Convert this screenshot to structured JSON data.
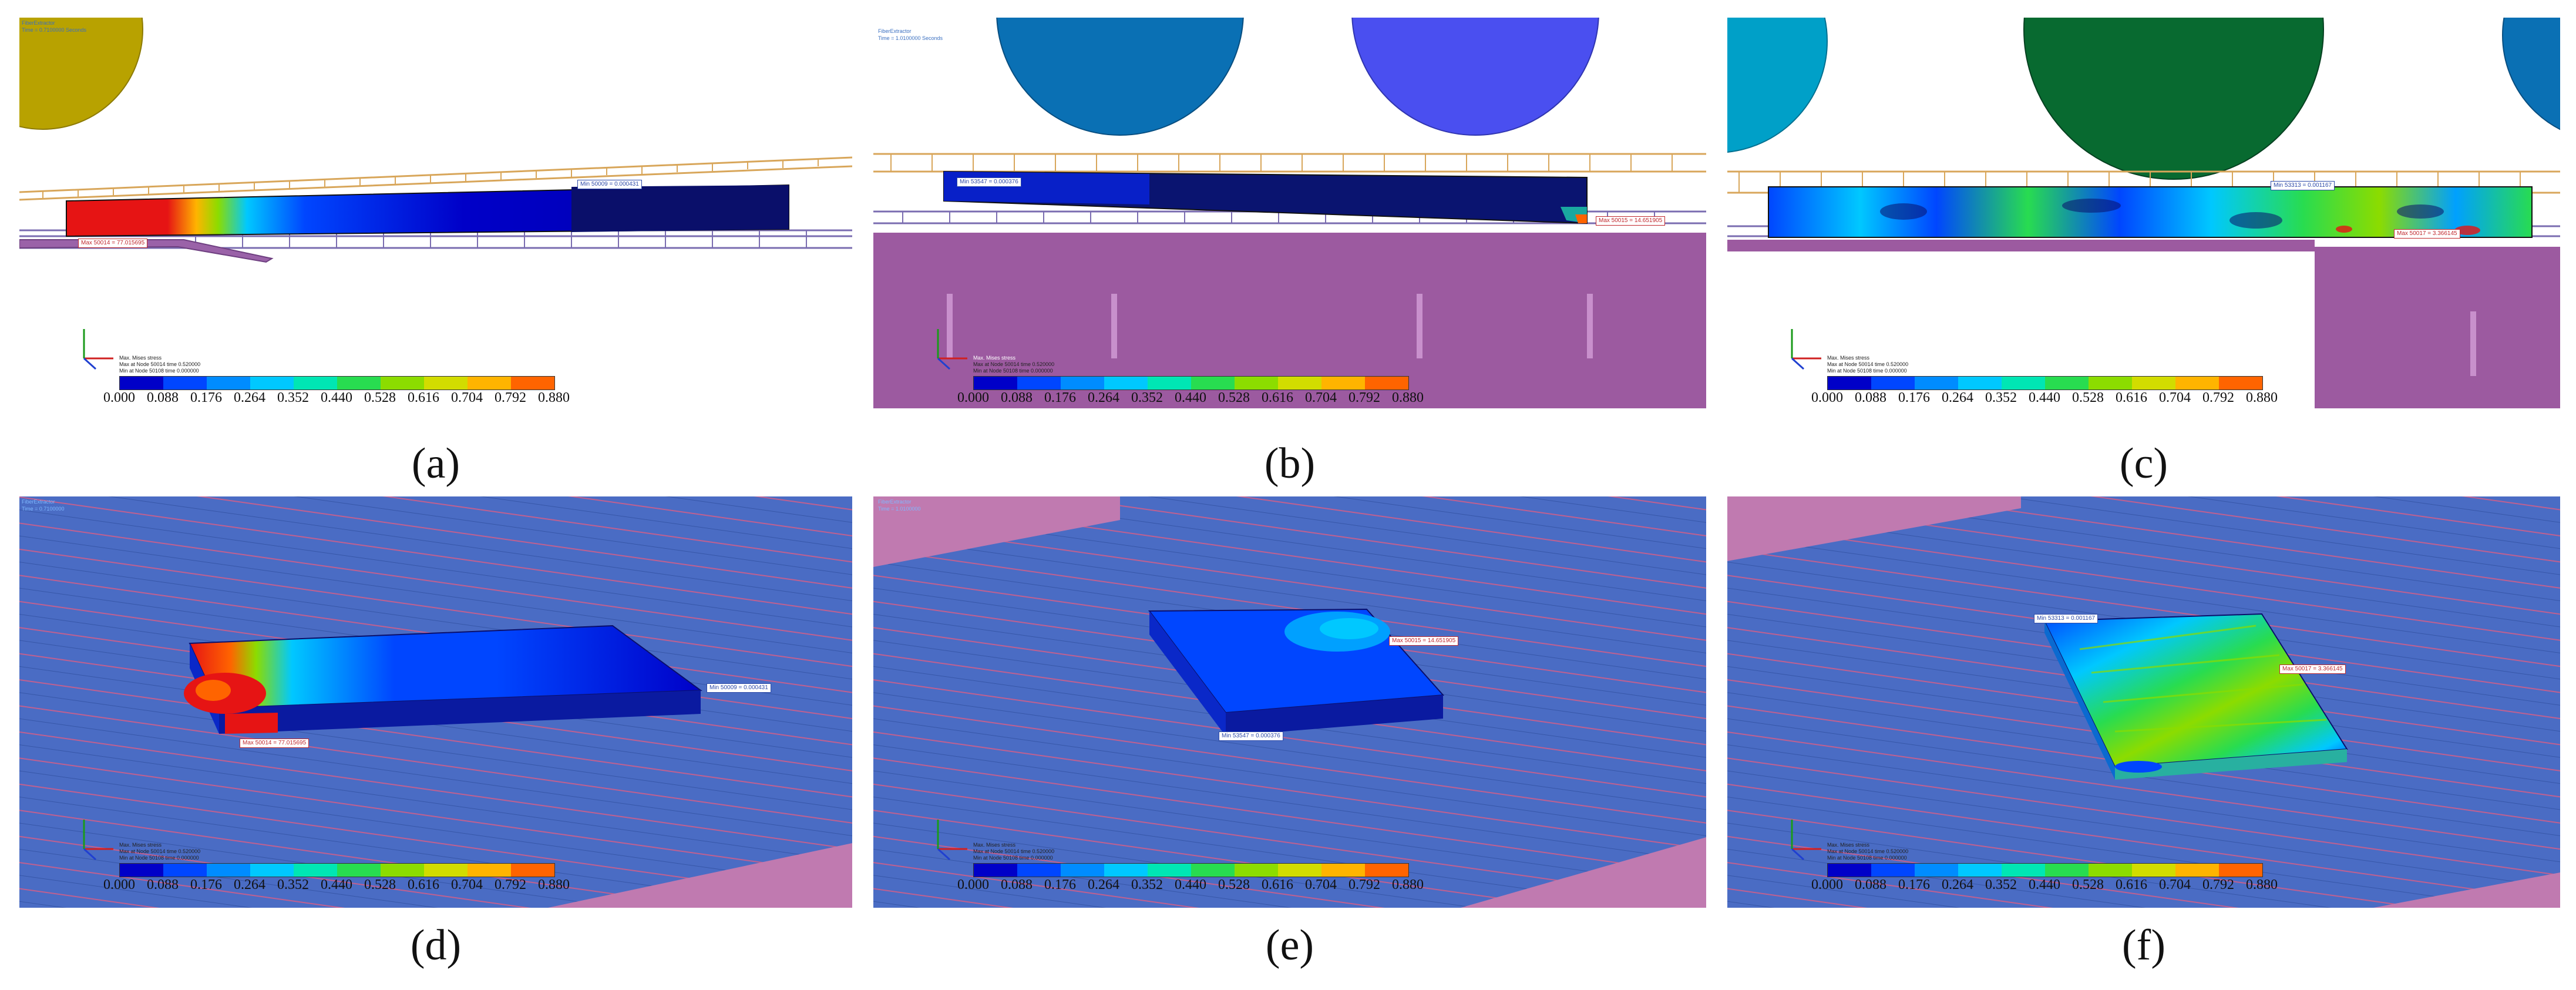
{
  "colorbar": {
    "ticks": [
      "0.000",
      "0.088",
      "0.176",
      "0.264",
      "0.352",
      "0.440",
      "0.528",
      "0.616",
      "0.704",
      "0.792",
      "0.880"
    ],
    "colors": [
      "#0000c8",
      "#0046ff",
      "#008cff",
      "#00c8ff",
      "#00e6b4",
      "#28dc50",
      "#8cdc00",
      "#d2dc00",
      "#ffb400",
      "#ff6400",
      "#e61414"
    ]
  },
  "legend_lines": [
    "Max. Mises stress",
    "Max at Node 50014 time 0.520000",
    "Min at Node 50108 time 0.000000"
  ],
  "panels": [
    {
      "caption": "(a)",
      "title": "FiberExtractor",
      "time": "Time = 0.7100000 Seconds",
      "max_tag": "Max 50014 = 77.015695",
      "min_tag": "Min 50009 = 0.000431"
    },
    {
      "caption": "(b)",
      "title": "FiberExtractor",
      "time": "Time = 1.0100000 Seconds",
      "max_tag": "Max 50015 = 14.651905",
      "min_tag": "Min 53547 = 0.000376"
    },
    {
      "caption": "(c)",
      "title": "",
      "time": "",
      "max_tag": "Max 50017 = 3.366145",
      "min_tag": "Min 53313 = 0.001167"
    },
    {
      "caption": "(d)",
      "title": "FiberExtractor",
      "time": "Time = 0.7100000",
      "max_tag": "Max 50014 = 77.015695",
      "min_tag": "Min 50009 = 0.000431"
    },
    {
      "caption": "(e)",
      "title": "FiberExtractor",
      "time": "Time = 1.0100000",
      "max_tag": "Max 50015 = 14.651905",
      "min_tag": "Min 53547 = 0.000376"
    },
    {
      "caption": "(f)",
      "title": "",
      "time": "",
      "max_tag": "Max 50017 = 3.366145",
      "min_tag": "Min 53313 = 0.001167"
    }
  ]
}
